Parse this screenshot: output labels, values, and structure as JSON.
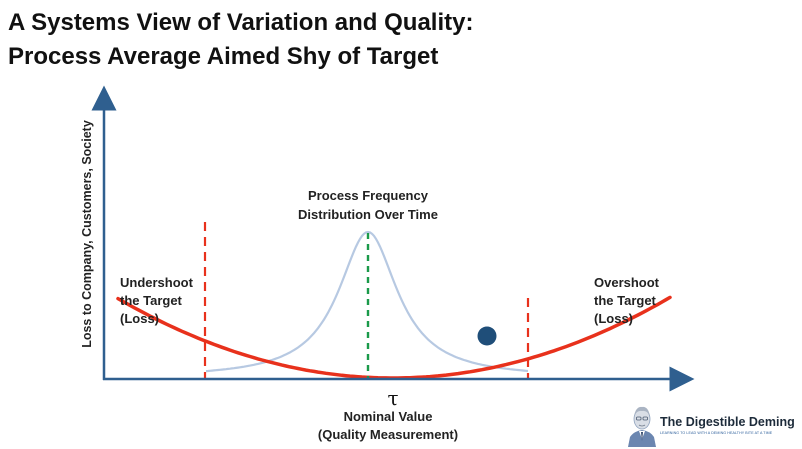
{
  "title": {
    "line1": "A Systems View of Variation and Quality:",
    "line2": "Process Average Aimed Shy of Target"
  },
  "axes": {
    "y_label": "Loss to Company, Customers, Society",
    "target_symbol": "τ",
    "x_label_line1": "Nominal Value",
    "x_label_line2": "(Quality Measurement)"
  },
  "annotations": {
    "distribution_line1": "Process Frequency",
    "distribution_line2": "Distribution Over Time",
    "undershoot_line1": "Undershoot",
    "undershoot_line2": "the Target",
    "undershoot_line3": "(Loss)",
    "overshoot_line1": "Overshoot",
    "overshoot_line2": "the Target",
    "overshoot_line3": "(Loss)"
  },
  "colors": {
    "loss_curve": "#e8311c",
    "distribution_curve": "#b7c9e2",
    "mean_line": "#1a9a4a",
    "limit_lines": "#e8311c",
    "axes": "#2f5f8f",
    "marker": "#1f4e79"
  },
  "brand": {
    "name": "The Digestible Deming",
    "tagline": "LEARNING TO LEAD WITH A DEMING HEALTHY BITE AT A TIME",
    "icon": "portrait-icon"
  }
}
